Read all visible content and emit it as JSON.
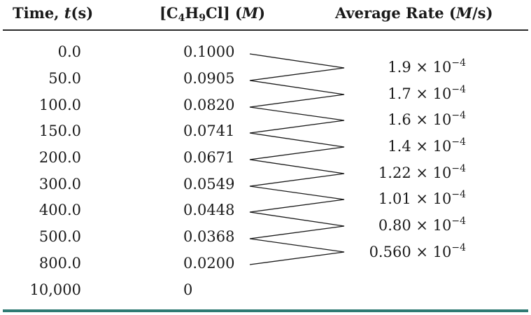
{
  "headers": {
    "time_prefix": "Time, ",
    "time_var": "t",
    "time_unit": "(s)",
    "conc_open": "[C",
    "conc_sub1": "4",
    "conc_mid": "H",
    "conc_sub2": "9",
    "conc_close": "Cl] (",
    "conc_unit": "M",
    "conc_end": ")",
    "rate_prefix": "Average Rate (",
    "rate_unit": "M",
    "rate_suffix": "/s)"
  },
  "rows": [
    {
      "time": "0.0",
      "conc": "0.1000"
    },
    {
      "time": "50.0",
      "conc": "0.0905"
    },
    {
      "time": "100.0",
      "conc": "0.0820"
    },
    {
      "time": "150.0",
      "conc": "0.0741"
    },
    {
      "time": "200.0",
      "conc": "0.0671"
    },
    {
      "time": "300.0",
      "conc": "0.0549"
    },
    {
      "time": "400.0",
      "conc": "0.0448"
    },
    {
      "time": "500.0",
      "conc": "0.0368"
    },
    {
      "time": "800.0",
      "conc": "0.0200"
    },
    {
      "time": "10,000",
      "conc": "0"
    }
  ],
  "rates": [
    {
      "mantissa": "1.9",
      "times": " × 10",
      "exponent": "−4"
    },
    {
      "mantissa": "1.7",
      "times": " × 10",
      "exponent": "−4"
    },
    {
      "mantissa": "1.6",
      "times": " × 10",
      "exponent": "−4"
    },
    {
      "mantissa": "1.4",
      "times": " × 10",
      "exponent": "−4"
    },
    {
      "mantissa": "1.22",
      "times": " × 10",
      "exponent": "−4"
    },
    {
      "mantissa": "1.01",
      "times": " × 10",
      "exponent": "−4"
    },
    {
      "mantissa": "0.80",
      "times": " × 10",
      "exponent": "−4"
    },
    {
      "mantissa": "0.560",
      "times": " × 10",
      "exponent": "−4"
    }
  ],
  "colors": {
    "text": "#1a1a1a",
    "top_rule": "#2a2a2a",
    "bottom_rule": "#2f7a73"
  }
}
